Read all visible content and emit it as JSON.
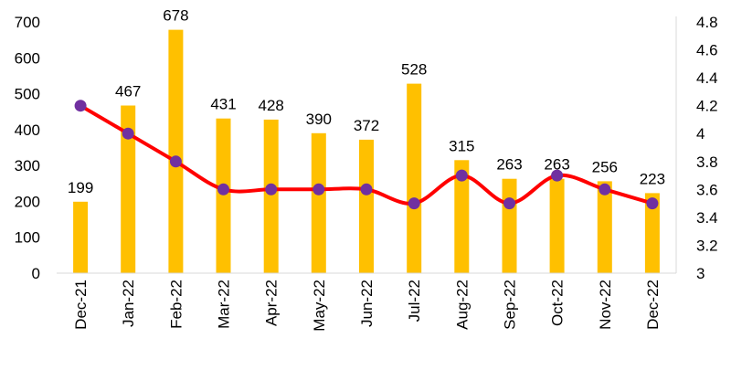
{
  "chart_data": {
    "type": "bar",
    "categories": [
      "Dec-21",
      "Jan-22",
      "Feb-22",
      "Mar-22",
      "Apr-22",
      "May-22",
      "Jun-22",
      "Jul-22",
      "Aug-22",
      "Sep-22",
      "Oct-22",
      "Nov-22",
      "Dec-22"
    ],
    "series": [
      {
        "type": "bar",
        "axis": "left",
        "color": "#FFC000",
        "values": [
          199,
          467,
          678,
          431,
          428,
          390,
          372,
          528,
          315,
          263,
          263,
          256,
          223
        ]
      },
      {
        "type": "line",
        "axis": "right",
        "color": "#FF0000",
        "marker_color": "#7030A0",
        "values": [
          4.2,
          4.0,
          3.8,
          3.6,
          3.6,
          3.6,
          3.6,
          3.5,
          3.7,
          3.5,
          3.7,
          3.6,
          3.5
        ]
      }
    ],
    "y_left": {
      "min": 0,
      "max": 700,
      "ticks": [
        "0",
        "100",
        "200",
        "300",
        "400",
        "500",
        "600",
        "700"
      ]
    },
    "y_right": {
      "min": 3,
      "max": 4.8,
      "ticks": [
        "3",
        "3.2",
        "3.4",
        "3.6",
        "3.8",
        "4",
        "4.2",
        "4.4",
        "4.6",
        "4.8"
      ]
    },
    "data_labels": [
      "199",
      "467",
      "678",
      "431",
      "428",
      "390",
      "372",
      "528",
      "315",
      "263",
      "263",
      "256",
      "223"
    ],
    "title": "",
    "xlabel": "",
    "ylabel": "",
    "grid": false,
    "legend": "none"
  }
}
